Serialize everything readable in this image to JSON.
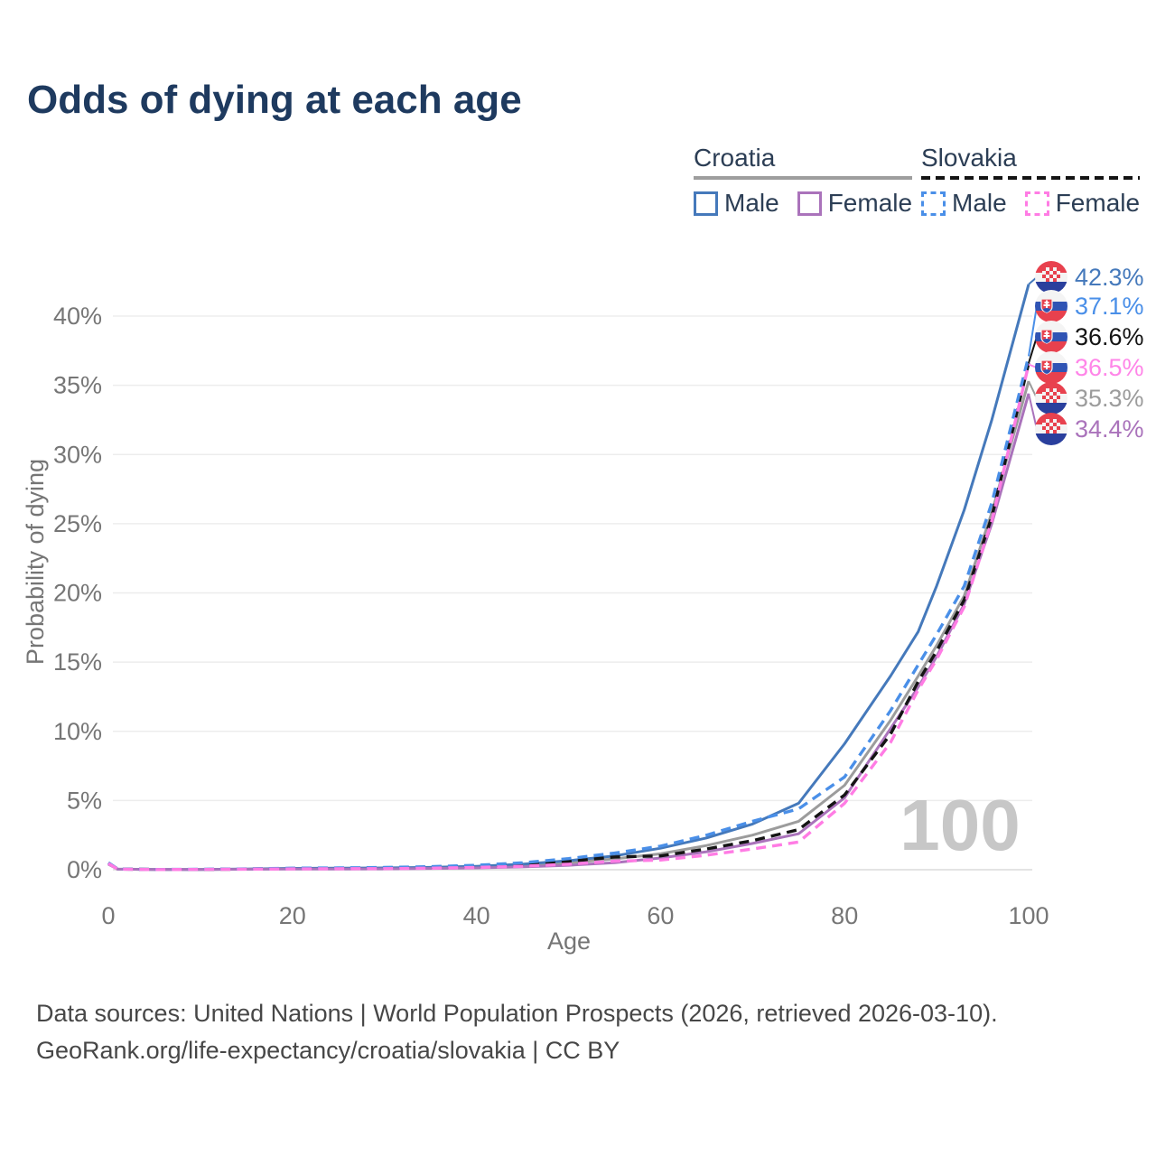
{
  "header": {
    "title": "Odds of dying at each age"
  },
  "legend": {
    "groups": [
      {
        "country": "Croatia",
        "line_style": "solid",
        "items": [
          {
            "label": "Male",
            "color": "#4579bb"
          },
          {
            "label": "Female",
            "color": "#aa73bb"
          }
        ]
      },
      {
        "country": "Slovakia",
        "line_style": "dashed",
        "items": [
          {
            "label": "Male",
            "color": "#4a8fe8"
          },
          {
            "label": "Female",
            "color": "#ff7ce4"
          }
        ]
      }
    ]
  },
  "chart_data": {
    "type": "line",
    "title": "Odds of dying at each age",
    "xlabel": "Age",
    "ylabel": "Probability of dying",
    "xlim": [
      0,
      100
    ],
    "ylim": [
      0,
      42.5
    ],
    "x_ticks": [
      0,
      20,
      40,
      60,
      80,
      100
    ],
    "x_tick_labels": [
      "0",
      "20",
      "40",
      "60",
      "80",
      "100"
    ],
    "y_ticks": [
      0,
      5,
      10,
      15,
      20,
      25,
      30,
      35,
      40
    ],
    "y_tick_labels": [
      "0%",
      "5%",
      "10%",
      "15%",
      "20%",
      "25%",
      "30%",
      "35%",
      "40%"
    ],
    "grid": "horizontal",
    "legend_position": "top-right",
    "watermark": "100",
    "ages": [
      0,
      1,
      5,
      10,
      15,
      20,
      25,
      30,
      35,
      40,
      45,
      50,
      55,
      60,
      65,
      70,
      75,
      80,
      85,
      88,
      90,
      93,
      96,
      100
    ],
    "series": [
      {
        "id": "croatia-both",
        "name": "Croatia (both sexes)",
        "style": "solid",
        "color": "#9c9c9c",
        "values": [
          0.42,
          0.04,
          0.02,
          0.02,
          0.04,
          0.08,
          0.09,
          0.1,
          0.14,
          0.2,
          0.32,
          0.5,
          0.78,
          1.15,
          1.75,
          2.5,
          3.5,
          6.1,
          10.8,
          14.0,
          16.2,
          19.8,
          25.8,
          35.3
        ]
      },
      {
        "id": "croatia-male",
        "name": "Croatia Male",
        "style": "solid",
        "color": "#4579bb",
        "values": [
          0.45,
          0.05,
          0.02,
          0.02,
          0.05,
          0.1,
          0.11,
          0.13,
          0.17,
          0.25,
          0.4,
          0.65,
          1.0,
          1.55,
          2.3,
          3.3,
          4.8,
          9.1,
          14.0,
          17.2,
          20.5,
          26.0,
          32.5,
          42.3
        ]
      },
      {
        "id": "croatia-female",
        "name": "Croatia Female",
        "style": "solid",
        "color": "#aa73bb",
        "values": [
          0.4,
          0.04,
          0.015,
          0.015,
          0.03,
          0.05,
          0.05,
          0.06,
          0.09,
          0.13,
          0.2,
          0.32,
          0.5,
          0.85,
          1.3,
          1.9,
          2.6,
          5.2,
          10.2,
          13.2,
          15.4,
          19.2,
          25.0,
          34.4
        ]
      },
      {
        "id": "slovakia-both",
        "name": "Slovakia (both sexes)",
        "style": "dashed",
        "color": "#141414",
        "values": [
          0.48,
          0.05,
          0.02,
          0.02,
          0.05,
          0.09,
          0.1,
          0.12,
          0.16,
          0.24,
          0.38,
          0.6,
          0.92,
          1.0,
          1.5,
          2.1,
          2.9,
          5.4,
          9.8,
          13.6,
          15.8,
          19.5,
          25.5,
          36.6
        ]
      },
      {
        "id": "slovakia-male",
        "name": "Slovakia Male",
        "style": "dashed",
        "color": "#4a8fe8",
        "values": [
          0.5,
          0.05,
          0.02,
          0.03,
          0.06,
          0.11,
          0.13,
          0.16,
          0.22,
          0.32,
          0.5,
          0.8,
          1.2,
          1.7,
          2.5,
          3.5,
          4.4,
          6.7,
          11.5,
          14.8,
          17.0,
          20.5,
          26.5,
          37.1
        ]
      },
      {
        "id": "slovakia-female",
        "name": "Slovakia Female",
        "style": "dashed",
        "color": "#ff7ce4",
        "values": [
          0.45,
          0.04,
          0.015,
          0.02,
          0.04,
          0.06,
          0.07,
          0.08,
          0.11,
          0.16,
          0.25,
          0.4,
          0.62,
          0.7,
          1.05,
          1.5,
          2.0,
          4.8,
          9.2,
          13.0,
          15.2,
          19.0,
          25.2,
          36.5
        ]
      }
    ]
  },
  "end_labels": [
    {
      "series": "croatia-male",
      "value": "42.3%",
      "color": "#4579bb",
      "flag": "#flag-hr"
    },
    {
      "series": "slovakia-male",
      "value": "37.1%",
      "color": "#4a8fe8",
      "flag": "#flag-sk"
    },
    {
      "series": "slovakia-both",
      "value": "36.6%",
      "color": "#141414",
      "flag": "#flag-sk"
    },
    {
      "series": "slovakia-female",
      "value": "36.5%",
      "color": "#ff85e8",
      "flag": "#flag-sk"
    },
    {
      "series": "croatia-both",
      "value": "35.3%",
      "color": "#9c9c9c",
      "flag": "#flag-hr"
    },
    {
      "series": "croatia-female",
      "value": "34.4%",
      "color": "#aa73bb",
      "flag": "#flag-hr"
    }
  ],
  "footer": {
    "line1": "Data sources: United Nations | World Population Prospects (2026, retrieved 2026-03-10).",
    "line2": "GeoRank.org/life-expectancy/croatia/slovakia | CC BY"
  }
}
